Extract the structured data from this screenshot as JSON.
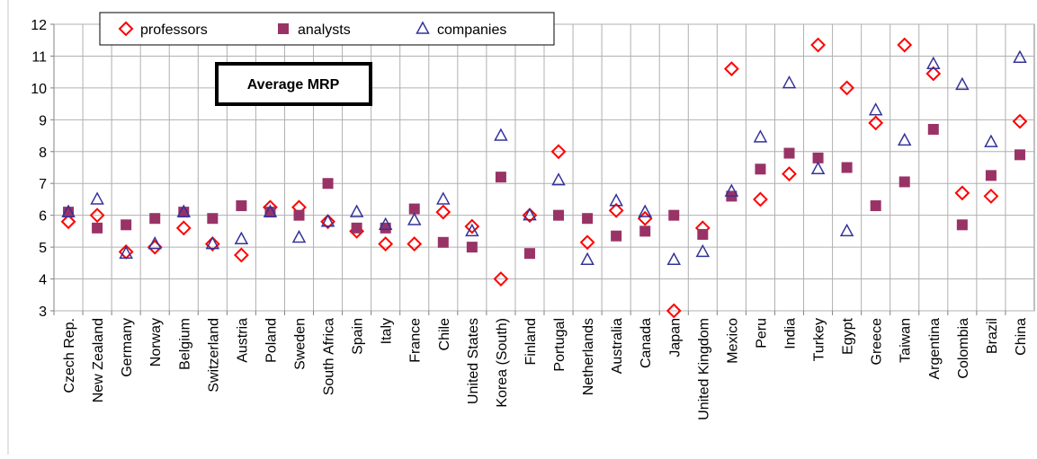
{
  "chart_data": {
    "type": "scatter",
    "annotation": "Average MRP",
    "categories": [
      "Czech Rep.",
      "New Zealand",
      "Germany",
      "Norway",
      "Belgium",
      "Switzerland",
      "Austria",
      "Poland",
      "Sweden",
      "South Africa",
      "Spain",
      "Italy",
      "France",
      "Chile",
      "United States",
      "Korea (South)",
      "Finland",
      "Portugal",
      "Netherlands",
      "Australia",
      "Canada",
      "Japan",
      "United Kingdom",
      "Mexico",
      "Peru",
      "India",
      "Turkey",
      "Egypt",
      "Greece",
      "Taiwan",
      "Argentina",
      "Colombia",
      "Brazil",
      "China"
    ],
    "series": [
      {
        "name": "professors",
        "color": "#ff0000",
        "marker": "diamond",
        "values": [
          5.8,
          6.0,
          4.85,
          5.0,
          5.6,
          5.1,
          4.75,
          6.25,
          6.25,
          5.8,
          5.5,
          5.1,
          5.1,
          6.1,
          5.65,
          4.0,
          6.0,
          8.0,
          5.15,
          6.15,
          5.9,
          3.0,
          5.6,
          10.6,
          6.5,
          7.3,
          11.35,
          10.0,
          8.9,
          11.35,
          10.45,
          6.7,
          6.6,
          8.95
        ]
      },
      {
        "name": "analysts",
        "color": "#993366",
        "marker": "square",
        "values": [
          6.1,
          5.6,
          5.7,
          5.9,
          6.1,
          5.9,
          6.3,
          6.1,
          6.0,
          7.0,
          5.6,
          5.6,
          6.2,
          5.15,
          5.0,
          7.2,
          4.8,
          6.0,
          5.9,
          5.35,
          5.5,
          6.0,
          5.4,
          6.6,
          7.45,
          7.95,
          7.8,
          7.5,
          6.3,
          7.05,
          8.7,
          5.7,
          7.25,
          7.9
        ]
      },
      {
        "name": "companies",
        "color": "#333399",
        "marker": "triangle",
        "values": [
          6.1,
          6.5,
          4.8,
          5.1,
          6.1,
          5.1,
          5.25,
          6.1,
          5.3,
          5.8,
          6.1,
          5.7,
          5.85,
          6.5,
          5.5,
          8.5,
          6.0,
          7.1,
          4.6,
          6.45,
          6.1,
          4.6,
          4.85,
          6.75,
          8.45,
          10.15,
          7.45,
          5.5,
          9.3,
          8.35,
          10.75,
          10.1,
          8.3,
          10.95
        ]
      }
    ],
    "ylim": [
      3,
      12
    ],
    "yticks": [
      3,
      4,
      5,
      6,
      7,
      8,
      9,
      10,
      11,
      12
    ],
    "grid": true,
    "legend": "top"
  }
}
